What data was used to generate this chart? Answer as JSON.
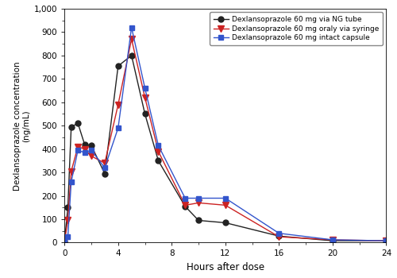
{
  "series": [
    {
      "label": "Dexlansoprazole 60 mg via NG tube",
      "color": "#222222",
      "marker": "o",
      "markersize": 5,
      "x": [
        0,
        0.25,
        0.5,
        1,
        1.5,
        2,
        3,
        4,
        5,
        6,
        7,
        9,
        10,
        12,
        16,
        20,
        24
      ],
      "y": [
        5,
        150,
        495,
        510,
        420,
        415,
        295,
        755,
        800,
        550,
        350,
        155,
        95,
        85,
        28,
        8,
        8
      ]
    },
    {
      "label": "Dexlansoprazole 60 mg oraly via syringe",
      "color": "#cc2222",
      "marker": "v",
      "markersize": 6,
      "x": [
        0,
        0.25,
        0.5,
        1,
        1.5,
        2,
        3,
        4,
        5,
        6,
        7,
        9,
        10,
        12,
        16,
        20,
        24
      ],
      "y": [
        5,
        95,
        305,
        410,
        400,
        370,
        340,
        590,
        870,
        620,
        390,
        160,
        170,
        160,
        25,
        12,
        8
      ]
    },
    {
      "label": "Dexlansoprazole 60 mg intact capsule",
      "color": "#3355cc",
      "marker": "s",
      "markersize": 5,
      "x": [
        0,
        0.25,
        0.5,
        1,
        1.5,
        2,
        3,
        4,
        5,
        6,
        7,
        9,
        10,
        12,
        16,
        20,
        24
      ],
      "y": [
        5,
        25,
        260,
        395,
        385,
        395,
        320,
        490,
        920,
        660,
        415,
        190,
        190,
        190,
        40,
        12,
        8
      ]
    }
  ],
  "xlabel": "Hours after dose",
  "ylabel": "Dexlansoprazole concentration\n(ng/mL)",
  "xlim": [
    0,
    24
  ],
  "ylim": [
    0,
    1000
  ],
  "xticks": [
    0,
    4,
    8,
    12,
    16,
    20,
    24
  ],
  "yticks": [
    0,
    100,
    200,
    300,
    400,
    500,
    600,
    700,
    800,
    900,
    1000
  ],
  "legend_loc": "upper right",
  "bg_color": "#ffffff",
  "linewidth": 1.0
}
